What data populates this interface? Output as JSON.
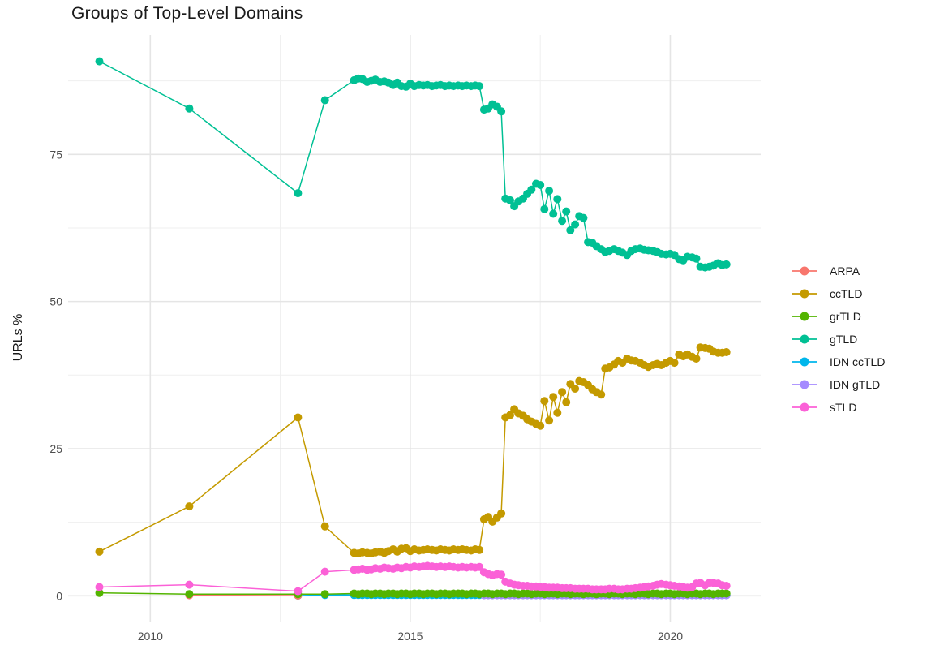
{
  "chart_data": {
    "type": "line",
    "title": "Groups of Top-Level Domains",
    "xlabel": "",
    "ylabel": "URLs %",
    "xlim": [
      2008.42,
      2021.74
    ],
    "ylim": [
      -4.5,
      95.3
    ],
    "grid": true,
    "legend_position": "right",
    "x_ticks": {
      "values": [
        2010,
        2015,
        2020
      ],
      "labels": [
        "2010",
        "2015",
        "2020"
      ],
      "minor": [
        2012.5,
        2017.5
      ]
    },
    "y_ticks": {
      "values": [
        0,
        25,
        50,
        75
      ],
      "labels": [
        "0",
        "25",
        "50",
        "75"
      ],
      "minor": [
        12.5,
        37.5,
        62.5,
        87.5
      ]
    },
    "draw_order": [
      "IDN ccTLD",
      "ARPA",
      "IDN gTLD",
      "grTLD",
      "sTLD",
      "ccTLD",
      "gTLD"
    ],
    "x_dense": [
      2013.92,
      2014.0,
      2014.08,
      2014.17,
      2014.25,
      2014.33,
      2014.42,
      2014.5,
      2014.58,
      2014.67,
      2014.75,
      2014.83,
      2014.92,
      2015.0,
      2015.08,
      2015.17,
      2015.25,
      2015.33,
      2015.42,
      2015.5,
      2015.58,
      2015.67,
      2015.75,
      2015.83,
      2015.92,
      2016.0,
      2016.08,
      2016.17,
      2016.25,
      2016.33,
      2016.42,
      2016.5,
      2016.58,
      2016.67,
      2016.75,
      2016.83,
      2016.92,
      2017.0,
      2017.08,
      2017.17,
      2017.25,
      2017.33,
      2017.42,
      2017.5,
      2017.58,
      2017.67,
      2017.75,
      2017.83,
      2017.92,
      2018.0,
      2018.08,
      2018.17,
      2018.25,
      2018.33,
      2018.42,
      2018.5,
      2018.58,
      2018.67,
      2018.75,
      2018.83,
      2018.92,
      2019.0,
      2019.08,
      2019.17,
      2019.25,
      2019.33,
      2019.42,
      2019.5,
      2019.58,
      2019.67,
      2019.75,
      2019.83,
      2019.92,
      2020.0,
      2020.08,
      2020.17,
      2020.25,
      2020.33,
      2020.42,
      2020.5,
      2020.58,
      2020.67,
      2020.75,
      2020.83,
      2020.92,
      2021.0,
      2021.08
    ],
    "series": [
      {
        "name": "ARPA",
        "color": "#F8766D",
        "early": [
          [
            2010.75,
            0.1
          ],
          [
            2012.84,
            0.05
          ]
        ],
        "dense": null
      },
      {
        "name": "ccTLD",
        "color": "#C49A00",
        "early": [
          [
            2009.02,
            7.5
          ],
          [
            2010.75,
            15.2
          ],
          [
            2012.84,
            30.3
          ],
          [
            2013.36,
            11.8
          ]
        ],
        "dense": [
          7.3,
          7.2,
          7.4,
          7.3,
          7.2,
          7.4,
          7.5,
          7.3,
          7.6,
          7.9,
          7.5,
          8.0,
          8.1,
          7.6,
          7.9,
          7.7,
          7.8,
          7.9,
          7.8,
          7.7,
          7.9,
          7.8,
          7.7,
          7.9,
          7.8,
          7.9,
          7.8,
          7.7,
          7.9,
          7.8,
          13.0,
          13.4,
          12.6,
          13.3,
          14.0,
          30.3,
          30.7,
          31.7,
          31.0,
          30.6,
          30.0,
          29.6,
          29.2,
          28.9,
          33.1,
          29.8,
          33.8,
          31.1,
          34.6,
          32.9,
          36.0,
          35.2,
          36.5,
          36.3,
          35.8,
          35.1,
          34.6,
          34.2,
          38.6,
          38.8,
          39.3,
          39.9,
          39.6,
          40.3,
          40.0,
          39.9,
          39.6,
          39.2,
          38.9,
          39.2,
          39.4,
          39.2,
          39.6,
          39.9,
          39.6,
          41.0,
          40.7,
          41.0,
          40.6,
          40.3,
          42.2,
          42.1,
          42.0,
          41.5,
          41.3,
          41.3,
          41.4
        ]
      },
      {
        "name": "grTLD",
        "color": "#53B400",
        "early": [
          [
            2009.02,
            0.5
          ],
          [
            2010.75,
            0.3
          ],
          [
            2012.84,
            0.3
          ],
          [
            2013.36,
            0.3
          ]
        ],
        "dense": [
          0.4,
          0.3,
          0.4,
          0.4,
          0.3,
          0.4,
          0.4,
          0.3,
          0.4,
          0.4,
          0.3,
          0.4,
          0.4,
          0.3,
          0.4,
          0.4,
          0.3,
          0.4,
          0.4,
          0.3,
          0.4,
          0.4,
          0.3,
          0.4,
          0.4,
          0.4,
          0.3,
          0.4,
          0.4,
          0.3,
          0.4,
          0.4,
          0.3,
          0.4,
          0.4,
          0.3,
          0.4,
          0.4,
          0.3,
          0.4,
          0.4,
          0.3,
          0.4,
          0.4,
          0.3,
          0.4,
          0.4,
          0.3,
          0.4,
          0.4,
          0.3,
          0.4,
          0.4,
          0.3,
          0.4,
          0.4,
          0.3,
          0.4,
          0.4,
          0.3,
          0.4,
          0.4,
          0.3,
          0.4,
          0.4,
          0.3,
          0.4,
          0.4,
          0.3,
          0.4,
          0.4,
          0.3,
          0.4,
          0.4,
          0.3,
          0.4,
          0.4,
          0.3,
          0.4,
          0.4,
          0.3,
          0.4,
          0.4,
          0.3,
          0.4,
          0.4,
          0.4
        ]
      },
      {
        "name": "gTLD",
        "color": "#00C094",
        "early": [
          [
            2009.02,
            90.8
          ],
          [
            2010.75,
            82.8
          ],
          [
            2012.84,
            68.4
          ],
          [
            2013.36,
            84.2
          ]
        ],
        "dense": [
          87.6,
          87.9,
          87.8,
          87.3,
          87.5,
          87.7,
          87.3,
          87.4,
          87.2,
          86.8,
          87.2,
          86.6,
          86.5,
          87.0,
          86.6,
          86.8,
          86.7,
          86.8,
          86.6,
          86.7,
          86.8,
          86.6,
          86.7,
          86.6,
          86.7,
          86.6,
          86.7,
          86.6,
          86.7,
          86.6,
          82.6,
          82.8,
          83.5,
          83.1,
          82.3,
          67.5,
          67.2,
          66.2,
          67.0,
          67.5,
          68.3,
          69.0,
          70.0,
          69.8,
          65.7,
          68.8,
          64.9,
          67.4,
          63.7,
          65.3,
          62.1,
          63.1,
          64.5,
          64.2,
          60.1,
          60.0,
          59.4,
          58.9,
          58.4,
          58.6,
          58.9,
          58.6,
          58.3,
          57.9,
          58.6,
          58.9,
          59.0,
          58.8,
          58.7,
          58.6,
          58.4,
          58.1,
          58.0,
          58.1,
          57.9,
          57.2,
          57.0,
          57.6,
          57.5,
          57.3,
          55.9,
          55.8,
          55.9,
          56.1,
          56.5,
          56.2,
          56.3
        ]
      },
      {
        "name": "IDN ccTLD",
        "color": "#00B6EB",
        "early": [
          [
            2012.84,
            0.05
          ],
          [
            2013.36,
            0.15
          ]
        ],
        "dense": [
          0.15,
          0.15,
          0.15,
          0.15,
          0.15,
          0.15,
          0.15,
          0.15,
          0.15,
          0.15,
          0.15,
          0.15,
          0.15,
          0.15,
          0.15,
          0.15,
          0.15,
          0.15,
          0.15,
          0.15,
          0.15,
          0.15,
          0.15,
          0.15,
          0.15,
          0.15,
          0.15,
          0.15,
          0.15,
          0.15,
          0.15,
          0.15,
          0.15,
          0.15,
          0.15,
          0.15,
          0.15,
          0.15,
          0.15,
          0.15,
          0.15,
          0.15,
          0.15,
          0.15,
          0.15,
          0.15,
          0.15,
          0.15,
          0.15,
          0.15,
          0.15,
          0.15,
          0.15,
          0.15,
          0.15,
          0.15,
          0.15,
          0.15,
          0.15,
          0.15,
          0.15,
          0.15,
          0.15,
          0.15,
          0.15,
          0.15,
          0.15,
          0.15,
          0.15,
          0.15,
          0.15,
          0.15,
          0.15,
          0.15,
          0.15,
          0.15,
          0.15,
          0.15,
          0.15,
          0.15,
          0.15,
          0.15,
          0.15,
          0.15,
          0.15,
          0.15,
          0.15
        ]
      },
      {
        "name": "IDN gTLD",
        "color": "#A58AFF",
        "early": [],
        "dense": [
          null,
          null,
          null,
          null,
          null,
          null,
          null,
          null,
          null,
          null,
          null,
          null,
          null,
          null,
          null,
          null,
          null,
          null,
          null,
          null,
          null,
          null,
          null,
          null,
          null,
          null,
          null,
          null,
          null,
          null,
          0.1,
          0.1,
          0.1,
          0.1,
          0.1,
          0.1,
          0.1,
          0.1,
          0.1,
          0.1,
          0.1,
          0.1,
          0.1,
          0.1,
          0.1,
          0.1,
          0.1,
          0.1,
          0.1,
          0.1,
          0.1,
          0.1,
          0.1,
          0.1,
          0.1,
          0.1,
          0.1,
          0.1,
          0.1,
          0.1,
          0.1,
          0.1,
          0.1,
          0.1,
          0.1,
          0.1,
          0.1,
          0.1,
          0.1,
          0.1,
          0.1,
          0.1,
          0.1,
          0.1,
          0.1,
          0.1,
          0.1,
          0.1,
          0.1,
          0.1,
          0.1,
          0.1,
          0.1,
          0.1,
          0.1,
          0.1,
          0.1
        ]
      },
      {
        "name": "sTLD",
        "color": "#FB61D7",
        "early": [
          [
            2009.02,
            1.5
          ],
          [
            2010.75,
            1.9
          ],
          [
            2012.84,
            0.8
          ],
          [
            2013.36,
            4.1
          ]
        ],
        "dense": [
          4.4,
          4.5,
          4.6,
          4.4,
          4.5,
          4.7,
          4.6,
          4.8,
          4.7,
          4.6,
          4.8,
          4.7,
          4.9,
          4.8,
          5.0,
          4.9,
          5.0,
          5.1,
          5.0,
          4.9,
          5.0,
          4.9,
          5.0,
          4.9,
          4.8,
          4.9,
          4.8,
          4.9,
          4.8,
          4.9,
          4.0,
          3.7,
          3.5,
          3.7,
          3.6,
          2.4,
          2.1,
          1.9,
          1.8,
          1.7,
          1.7,
          1.6,
          1.6,
          1.5,
          1.5,
          1.4,
          1.4,
          1.4,
          1.3,
          1.3,
          1.3,
          1.2,
          1.2,
          1.2,
          1.2,
          1.1,
          1.1,
          1.1,
          1.1,
          1.2,
          1.2,
          1.1,
          1.1,
          1.2,
          1.2,
          1.3,
          1.4,
          1.5,
          1.6,
          1.7,
          1.9,
          2.0,
          1.9,
          1.8,
          1.7,
          1.6,
          1.5,
          1.4,
          1.5,
          2.1,
          2.2,
          1.8,
          2.2,
          2.2,
          2.1,
          1.8,
          1.7
        ]
      }
    ]
  }
}
